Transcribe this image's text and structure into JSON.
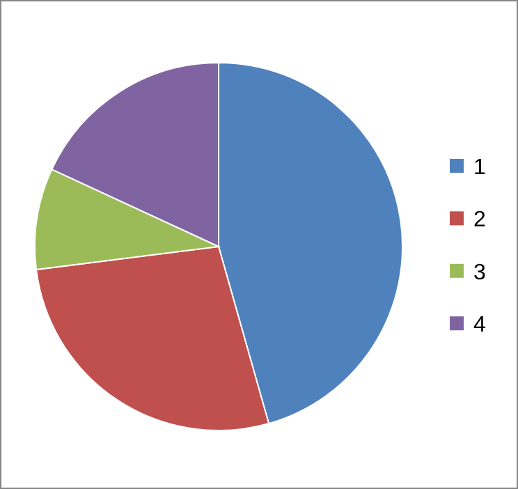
{
  "chart_data": {
    "type": "pie",
    "categories": [
      "1",
      "2",
      "3",
      "4"
    ],
    "values": [
      45.6,
      27.4,
      8.9,
      18.1
    ],
    "colors": [
      "#4f81bd",
      "#c0504d",
      "#9bbb59",
      "#8064a2"
    ],
    "legend": "right"
  }
}
